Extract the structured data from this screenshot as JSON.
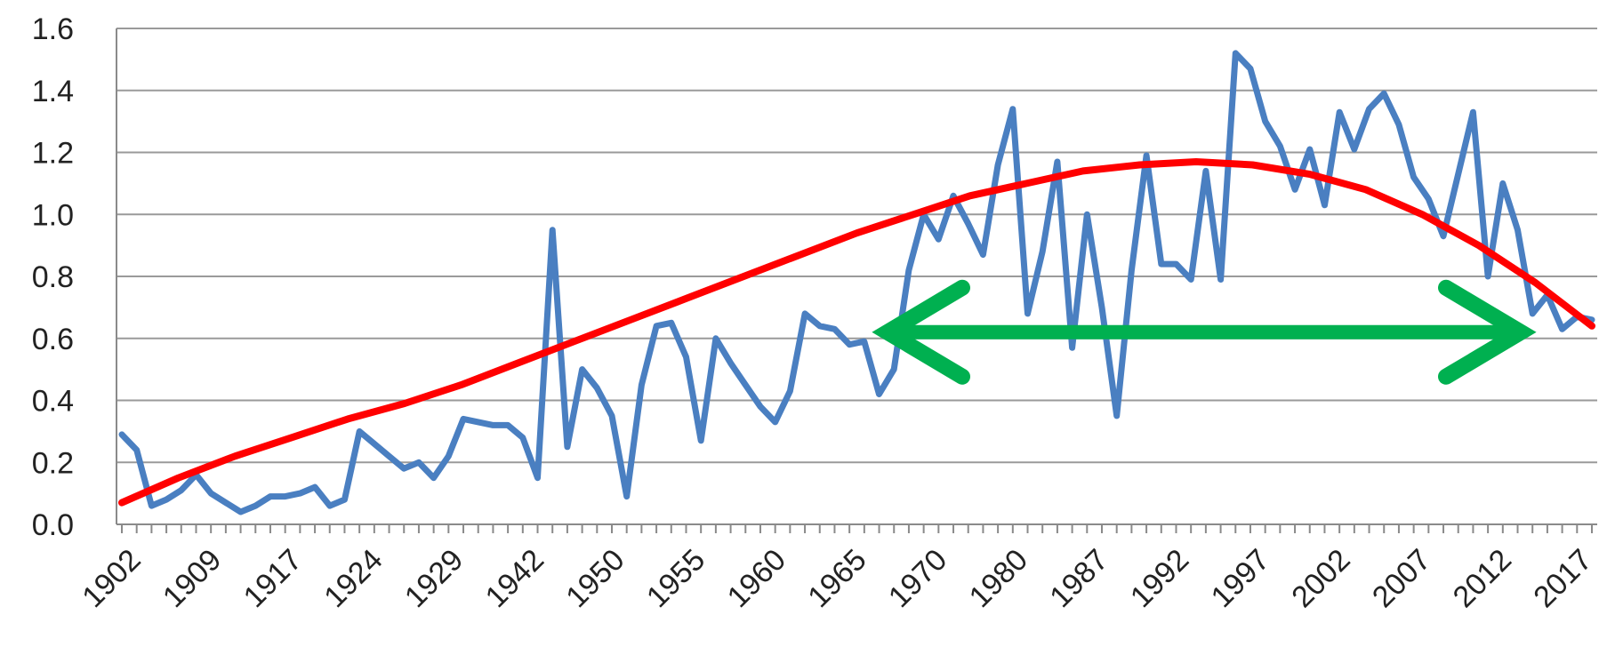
{
  "chart_data": {
    "type": "line",
    "title": "",
    "xlabel": "",
    "ylabel": "",
    "ylim": [
      0,
      1.6
    ],
    "y_ticks": [
      "0.0",
      "0.2",
      "0.4",
      "0.6",
      "0.8",
      "1.0",
      "1.2",
      "1.4",
      "1.6"
    ],
    "x_ticks": [
      "1902",
      "1909",
      "1917",
      "1924",
      "1929",
      "1942",
      "1950",
      "1955",
      "1960",
      "1965",
      "1970",
      "1980",
      "1987",
      "1992",
      "1997",
      "2002",
      "2007",
      "2012",
      "2017"
    ],
    "grid": "horizontal",
    "series": [
      {
        "color": "#4a7fc1",
        "values": [
          0.29,
          0.24,
          0.06,
          0.08,
          0.11,
          0.16,
          0.1,
          0.07,
          0.04,
          0.06,
          0.09,
          0.09,
          0.1,
          0.12,
          0.06,
          0.08,
          0.3,
          0.26,
          0.22,
          0.18,
          0.2,
          0.15,
          0.22,
          0.34,
          0.33,
          0.32,
          0.32,
          0.28,
          0.15,
          0.95,
          0.25,
          0.5,
          0.44,
          0.35,
          0.09,
          0.45,
          0.64,
          0.65,
          0.54,
          0.27,
          0.6,
          0.52,
          0.45,
          0.38,
          0.33,
          0.43,
          0.68,
          0.64,
          0.63,
          0.58,
          0.59,
          0.42,
          0.5,
          0.82,
          1.0,
          0.92,
          1.06,
          0.97,
          0.87,
          1.16,
          1.34,
          0.68,
          0.88,
          1.17,
          0.57,
          1.0,
          0.7,
          0.35,
          0.82,
          1.19,
          0.84,
          0.84,
          0.79,
          1.14,
          0.79,
          1.52,
          1.47,
          1.3,
          1.22,
          1.08,
          1.21,
          1.03,
          1.33,
          1.21,
          1.34,
          1.39,
          1.29,
          1.12,
          1.05,
          0.93,
          1.13,
          1.33,
          0.8,
          1.1,
          0.95,
          0.68,
          0.74,
          0.63,
          0.67,
          0.66
        ]
      },
      {
        "color": "#ff0000",
        "values": [
          0.07,
          0.15,
          0.22,
          0.28,
          0.34,
          0.39,
          0.45,
          0.52,
          0.59,
          0.66,
          0.73,
          0.8,
          0.87,
          0.94,
          1.0,
          1.06,
          1.1,
          1.14,
          1.16,
          1.17,
          1.16,
          1.13,
          1.08,
          1.0,
          0.9,
          0.78,
          0.64
        ]
      }
    ],
    "annotation": {
      "type": "double-arrow",
      "color": "#00b050",
      "y": 0.62
    }
  }
}
